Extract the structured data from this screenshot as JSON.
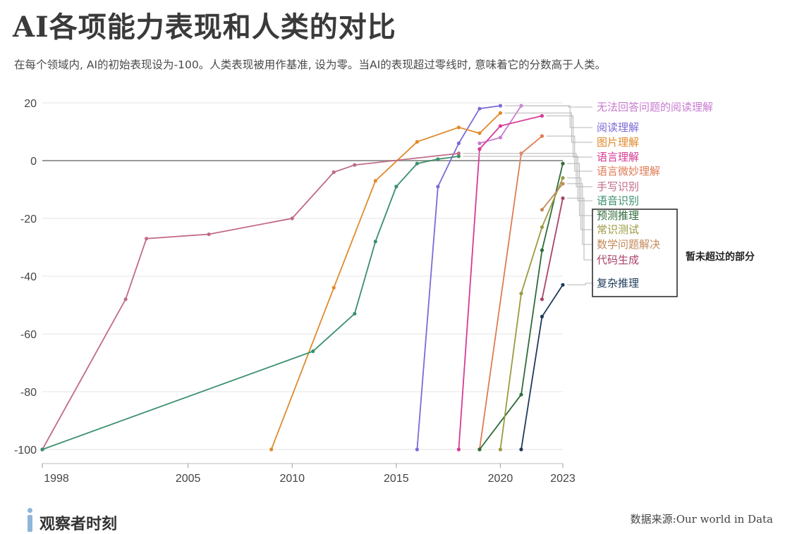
{
  "header": {
    "title": "AI各项能力表现和人类的对比",
    "subtitle": "在每个领域内, AI的初始表现设为-100。人类表现被用作基准, 设为零。当AI的表现超过零线时, 意味着它的分数高于人类。"
  },
  "footer": {
    "brand": "观察者时刻",
    "source": "数据来源:Our world in Data"
  },
  "chart_data": {
    "type": "line",
    "title": "AI各项能力表现和人类的对比",
    "xlabel": "",
    "ylabel": "",
    "xlim": [
      1998,
      2023
    ],
    "ylim": [
      -100,
      20
    ],
    "x_ticks": [
      1998,
      2005,
      2010,
      2015,
      2020,
      2023
    ],
    "y_ticks": [
      20,
      0,
      -20,
      -40,
      -60,
      -80,
      -100
    ],
    "grid": true,
    "legend_placement": "right",
    "box_label": "暂未超过的部分",
    "series": [
      {
        "name": "无法回答问题的阅读理解",
        "color": "#c87bd0",
        "points": [
          [
            2019,
            6
          ],
          [
            2020,
            8
          ],
          [
            2021,
            19
          ]
        ]
      },
      {
        "name": "阅读理解",
        "color": "#7b6bd6",
        "points": [
          [
            2016,
            -100
          ],
          [
            2017,
            -9
          ],
          [
            2018,
            6
          ],
          [
            2019,
            18
          ],
          [
            2020,
            19
          ]
        ]
      },
      {
        "name": "图片理解",
        "color": "#e08a2c",
        "points": [
          [
            2009,
            -100
          ],
          [
            2012,
            -44
          ],
          [
            2014,
            -7
          ],
          [
            2016,
            6.5
          ],
          [
            2018,
            11.5
          ],
          [
            2019,
            9.5
          ],
          [
            2020,
            16.5
          ]
        ]
      },
      {
        "name": "语言理解",
        "color": "#d63a93",
        "points": [
          [
            2018,
            -100
          ],
          [
            2019,
            4
          ],
          [
            2020,
            12
          ],
          [
            2022,
            15.5
          ]
        ]
      },
      {
        "name": "语言微妙理解",
        "color": "#e07b54",
        "points": [
          [
            2019,
            -100
          ],
          [
            2021,
            2.5
          ],
          [
            2022,
            8.5
          ]
        ]
      },
      {
        "name": "手写识别",
        "color": "#c06b85",
        "points": [
          [
            1998,
            -100
          ],
          [
            2002,
            -48
          ],
          [
            2003,
            -27
          ],
          [
            2006,
            -25.5
          ],
          [
            2010,
            -20
          ],
          [
            2012,
            -4
          ],
          [
            2013,
            -1.5
          ],
          [
            2018,
            2.5
          ]
        ]
      },
      {
        "name": "语音识别",
        "color": "#3a8f6c",
        "points": [
          [
            1998,
            -100
          ],
          [
            2011,
            -66
          ],
          [
            2013,
            -53
          ],
          [
            2014,
            -28
          ],
          [
            2015,
            -9
          ],
          [
            2016,
            -1
          ],
          [
            2017,
            0.5
          ],
          [
            2018,
            1.5
          ]
        ]
      },
      {
        "name": "预测推理",
        "color": "#2f6b3a",
        "points": [
          [
            2019,
            -100
          ],
          [
            2021,
            -81
          ],
          [
            2022,
            -31
          ],
          [
            2023,
            -1
          ]
        ]
      },
      {
        "name": "常识测试",
        "color": "#9a9a42",
        "points": [
          [
            2020,
            -100
          ],
          [
            2021,
            -46
          ],
          [
            2022,
            -23
          ],
          [
            2023,
            -6
          ]
        ]
      },
      {
        "name": "数学问题解决",
        "color": "#c48a5a",
        "points": [
          [
            2022,
            -17
          ],
          [
            2023,
            -8
          ]
        ]
      },
      {
        "name": "代码生成",
        "color": "#a8436a",
        "points": [
          [
            2022,
            -48
          ],
          [
            2023,
            -13
          ]
        ]
      },
      {
        "name": "复杂推理",
        "color": "#1f3a5a",
        "points": [
          [
            2021,
            -100
          ],
          [
            2022,
            -54
          ],
          [
            2023,
            -43
          ]
        ]
      }
    ]
  }
}
